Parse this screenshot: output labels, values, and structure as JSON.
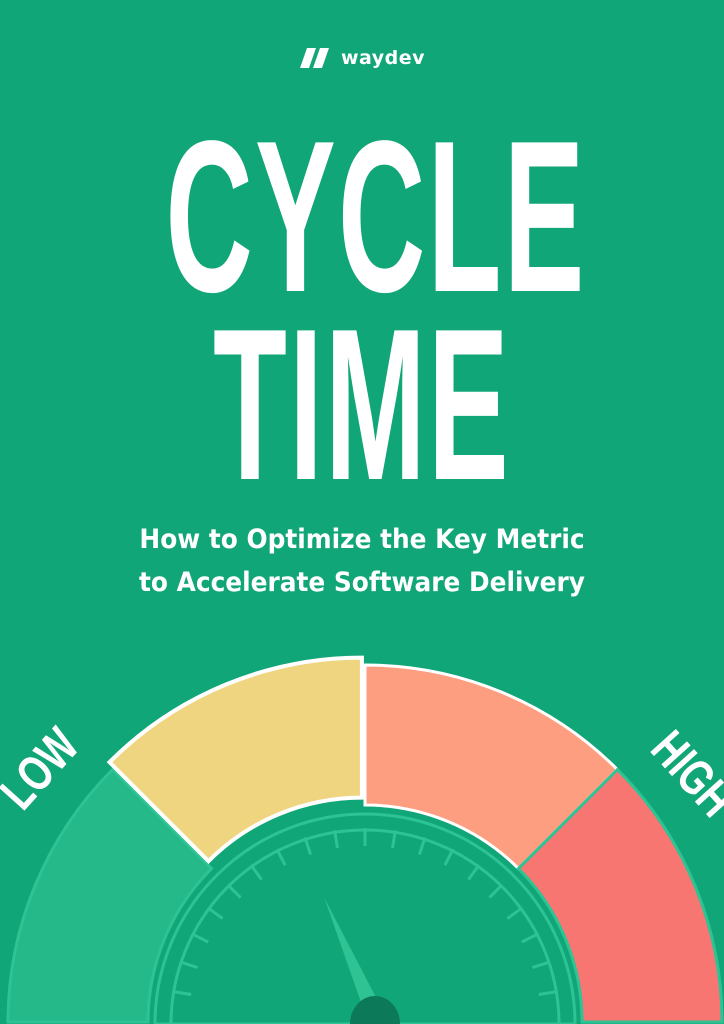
{
  "logo": {
    "text": "waydev"
  },
  "title": {
    "line1": "CYCLE",
    "line2": "TIME"
  },
  "subtitle": {
    "line1": "How to Optimize the Key Metric",
    "line2": "to Accelerate Software Delivery"
  },
  "gauge": {
    "low_label": "LOW",
    "high_label": "HIGH",
    "needle_level": 0.37,
    "segments": [
      {
        "color": "#25b98a"
      },
      {
        "color": "#f0d580"
      },
      {
        "color": "#fe9e80"
      },
      {
        "color": "#f87672"
      }
    ]
  },
  "colors": {
    "background": "#11a677",
    "hub": "#0c7a58",
    "needle": "#2fc293",
    "ticks": "#2dc394"
  }
}
